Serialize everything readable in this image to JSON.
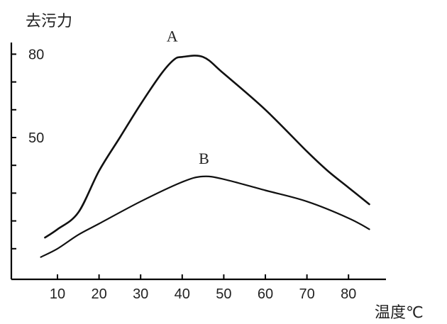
{
  "chart_data": {
    "type": "line",
    "ylabel": "去污力",
    "xlabel": "温度℃",
    "xlim": [
      5,
      90
    ],
    "ylim": [
      0,
      90
    ],
    "x_ticks": [
      10,
      20,
      30,
      40,
      50,
      60,
      70,
      80
    ],
    "y_ticks": [
      10,
      20,
      30,
      40,
      50,
      60,
      70,
      80
    ],
    "y_tick_labels": [
      {
        "value": 50,
        "label": "50"
      },
      {
        "value": 80,
        "label": "80"
      }
    ],
    "series": [
      {
        "name": "A",
        "points": [
          [
            7,
            14
          ],
          [
            10,
            17
          ],
          [
            15,
            23
          ],
          [
            20,
            38
          ],
          [
            25,
            50
          ],
          [
            30,
            62
          ],
          [
            35,
            73
          ],
          [
            38,
            78
          ],
          [
            40,
            79
          ],
          [
            45,
            79
          ],
          [
            50,
            73
          ],
          [
            60,
            60
          ],
          [
            70,
            45
          ],
          [
            75,
            38
          ],
          [
            80,
            32
          ],
          [
            85,
            26
          ]
        ]
      },
      {
        "name": "B",
        "points": [
          [
            6,
            7
          ],
          [
            10,
            10
          ],
          [
            15,
            15
          ],
          [
            20,
            19
          ],
          [
            30,
            27
          ],
          [
            40,
            34
          ],
          [
            45,
            36
          ],
          [
            50,
            35
          ],
          [
            60,
            31
          ],
          [
            70,
            27
          ],
          [
            80,
            21
          ],
          [
            85,
            17
          ]
        ]
      }
    ]
  }
}
